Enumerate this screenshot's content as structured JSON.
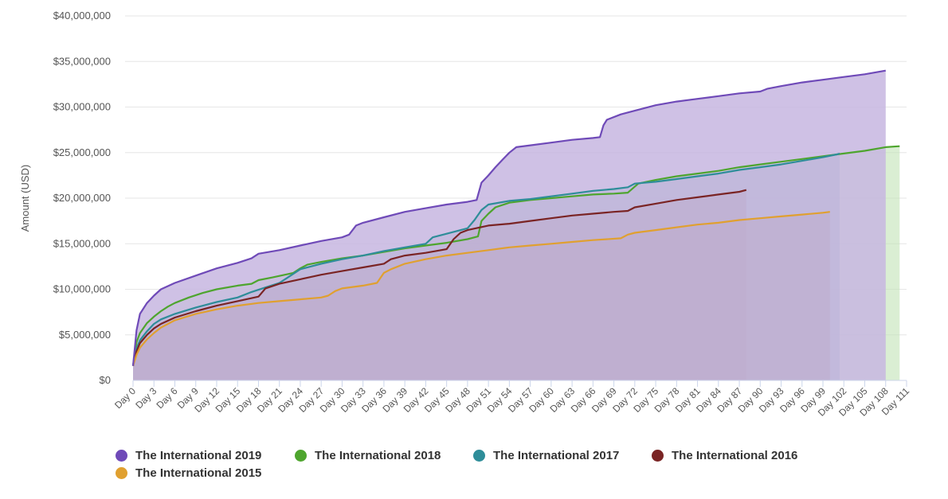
{
  "chart_data": {
    "type": "area",
    "title": "",
    "ylabel": "Amount (USD)",
    "xlabel": "",
    "ylim": [
      0,
      40000000
    ],
    "yticks": [
      "$0",
      "$5,000,000",
      "$10,000,000",
      "$15,000,000",
      "$20,000,000",
      "$25,000,000",
      "$30,000,000",
      "$35,000,000",
      "$40,000,000"
    ],
    "ytick_values": [
      0,
      5000000,
      10000000,
      15000000,
      20000000,
      25000000,
      30000000,
      35000000,
      40000000
    ],
    "xlim": [
      0,
      111
    ],
    "xticks": [
      "Day 0",
      "Day 3",
      "Day 6",
      "Day 9",
      "Day 12",
      "Day 15",
      "Day 18",
      "Day 21",
      "Day 24",
      "Day 27",
      "Day 30",
      "Day 33",
      "Day 36",
      "Day 39",
      "Day 42",
      "Day 45",
      "Day 48",
      "Day 51",
      "Day 54",
      "Day 57",
      "Day 60",
      "Day 63",
      "Day 66",
      "Day 69",
      "Day 72",
      "Day 75",
      "Day 78",
      "Day 81",
      "Day 84",
      "Day 87",
      "Day 90",
      "Day 93",
      "Day 96",
      "Day 99",
      "Day 102",
      "Day 105",
      "Day 108",
      "Day 111"
    ],
    "xtick_values": [
      0,
      3,
      6,
      9,
      12,
      15,
      18,
      21,
      24,
      27,
      30,
      33,
      36,
      39,
      42,
      45,
      48,
      51,
      54,
      57,
      60,
      63,
      66,
      69,
      72,
      75,
      78,
      81,
      84,
      87,
      90,
      93,
      96,
      99,
      102,
      105,
      108,
      111
    ],
    "grid": true,
    "legend_position": "bottom",
    "series": [
      {
        "name": "The International 2018",
        "color": "#4ea52e",
        "fill": "#c2e2b6",
        "points": [
          [
            0,
            1600000
          ],
          [
            0.5,
            4200000
          ],
          [
            1,
            5200000
          ],
          [
            2,
            6300000
          ],
          [
            3,
            7000000
          ],
          [
            4,
            7600000
          ],
          [
            5,
            8100000
          ],
          [
            6,
            8500000
          ],
          [
            8,
            9100000
          ],
          [
            10,
            9600000
          ],
          [
            12,
            10000000
          ],
          [
            15,
            10400000
          ],
          [
            17,
            10600000
          ],
          [
            18,
            11000000
          ],
          [
            20,
            11300000
          ],
          [
            23,
            11800000
          ],
          [
            24,
            12300000
          ],
          [
            25,
            12700000
          ],
          [
            27,
            13000000
          ],
          [
            30,
            13400000
          ],
          [
            33,
            13700000
          ],
          [
            36,
            14100000
          ],
          [
            39,
            14500000
          ],
          [
            42,
            14800000
          ],
          [
            45,
            15100000
          ],
          [
            48,
            15500000
          ],
          [
            49.5,
            15800000
          ],
          [
            50,
            17500000
          ],
          [
            51,
            18300000
          ],
          [
            52,
            19000000
          ],
          [
            54,
            19500000
          ],
          [
            57,
            19800000
          ],
          [
            60,
            20000000
          ],
          [
            63,
            20200000
          ],
          [
            66,
            20400000
          ],
          [
            69,
            20500000
          ],
          [
            71,
            20600000
          ],
          [
            72.5,
            21600000
          ],
          [
            75,
            22000000
          ],
          [
            78,
            22400000
          ],
          [
            81,
            22700000
          ],
          [
            84,
            23000000
          ],
          [
            87,
            23400000
          ],
          [
            90,
            23700000
          ],
          [
            93,
            24000000
          ],
          [
            96,
            24300000
          ],
          [
            99,
            24600000
          ],
          [
            102,
            24900000
          ],
          [
            105,
            25200000
          ],
          [
            108,
            25600000
          ],
          [
            110,
            25700000
          ]
        ]
      },
      {
        "name": "The International 2017",
        "color": "#2e8d99",
        "fill": "#8aaeb5",
        "points": [
          [
            0,
            1600000
          ],
          [
            0.5,
            3500000
          ],
          [
            1,
            4400000
          ],
          [
            2,
            5400000
          ],
          [
            3,
            6200000
          ],
          [
            4,
            6700000
          ],
          [
            6,
            7300000
          ],
          [
            9,
            8000000
          ],
          [
            12,
            8600000
          ],
          [
            15,
            9100000
          ],
          [
            17,
            9700000
          ],
          [
            19,
            10200000
          ],
          [
            21,
            10700000
          ],
          [
            22,
            11200000
          ],
          [
            24,
            12200000
          ],
          [
            27,
            12800000
          ],
          [
            30,
            13300000
          ],
          [
            33,
            13700000
          ],
          [
            36,
            14200000
          ],
          [
            39,
            14600000
          ],
          [
            42,
            15000000
          ],
          [
            43,
            15700000
          ],
          [
            45,
            16100000
          ],
          [
            48,
            16700000
          ],
          [
            49,
            17600000
          ],
          [
            50,
            18700000
          ],
          [
            51,
            19300000
          ],
          [
            54,
            19700000
          ],
          [
            57,
            19900000
          ],
          [
            60,
            20200000
          ],
          [
            63,
            20500000
          ],
          [
            66,
            20800000
          ],
          [
            69,
            21000000
          ],
          [
            71,
            21200000
          ],
          [
            72,
            21600000
          ],
          [
            75,
            21800000
          ],
          [
            78,
            22100000
          ],
          [
            81,
            22400000
          ],
          [
            84,
            22700000
          ],
          [
            87,
            23100000
          ],
          [
            90,
            23400000
          ],
          [
            93,
            23700000
          ],
          [
            96,
            24100000
          ],
          [
            99,
            24500000
          ],
          [
            101,
            24800000
          ],
          [
            101.4,
            24900000
          ]
        ]
      },
      {
        "name": "The International 2016",
        "color": "#7a2424",
        "fill": "#8b7669",
        "points": [
          [
            0,
            1600000
          ],
          [
            0.5,
            3200000
          ],
          [
            1,
            4100000
          ],
          [
            2,
            5000000
          ],
          [
            3,
            5700000
          ],
          [
            4,
            6200000
          ],
          [
            6,
            6900000
          ],
          [
            9,
            7600000
          ],
          [
            12,
            8200000
          ],
          [
            15,
            8700000
          ],
          [
            18,
            9200000
          ],
          [
            19,
            10100000
          ],
          [
            21,
            10600000
          ],
          [
            24,
            11100000
          ],
          [
            27,
            11600000
          ],
          [
            30,
            12000000
          ],
          [
            33,
            12400000
          ],
          [
            36,
            12800000
          ],
          [
            37,
            13300000
          ],
          [
            39,
            13700000
          ],
          [
            42,
            14000000
          ],
          [
            45,
            14400000
          ],
          [
            46,
            15500000
          ],
          [
            47,
            16200000
          ],
          [
            48,
            16500000
          ],
          [
            51,
            17000000
          ],
          [
            54,
            17200000
          ],
          [
            57,
            17500000
          ],
          [
            60,
            17800000
          ],
          [
            63,
            18100000
          ],
          [
            66,
            18300000
          ],
          [
            69,
            18500000
          ],
          [
            71,
            18600000
          ],
          [
            72,
            19000000
          ],
          [
            75,
            19400000
          ],
          [
            78,
            19800000
          ],
          [
            81,
            20100000
          ],
          [
            84,
            20400000
          ],
          [
            87,
            20700000
          ],
          [
            88,
            20900000
          ]
        ]
      },
      {
        "name": "The International 2015",
        "color": "#e0a030",
        "fill": "#8f7a60",
        "points": [
          [
            0,
            1600000
          ],
          [
            0.5,
            2800000
          ],
          [
            1,
            3600000
          ],
          [
            2,
            4500000
          ],
          [
            3,
            5200000
          ],
          [
            4,
            5800000
          ],
          [
            6,
            6600000
          ],
          [
            9,
            7300000
          ],
          [
            12,
            7800000
          ],
          [
            15,
            8200000
          ],
          [
            18,
            8500000
          ],
          [
            21,
            8700000
          ],
          [
            24,
            8900000
          ],
          [
            27,
            9100000
          ],
          [
            28,
            9300000
          ],
          [
            29,
            9800000
          ],
          [
            30,
            10100000
          ],
          [
            33,
            10400000
          ],
          [
            35,
            10700000
          ],
          [
            36,
            11800000
          ],
          [
            37,
            12200000
          ],
          [
            39,
            12800000
          ],
          [
            42,
            13300000
          ],
          [
            45,
            13700000
          ],
          [
            48,
            14000000
          ],
          [
            51,
            14300000
          ],
          [
            54,
            14600000
          ],
          [
            57,
            14800000
          ],
          [
            60,
            15000000
          ],
          [
            63,
            15200000
          ],
          [
            66,
            15400000
          ],
          [
            70,
            15600000
          ],
          [
            71,
            16000000
          ],
          [
            72,
            16200000
          ],
          [
            75,
            16500000
          ],
          [
            78,
            16800000
          ],
          [
            81,
            17100000
          ],
          [
            84,
            17300000
          ],
          [
            87,
            17600000
          ],
          [
            90,
            17800000
          ],
          [
            93,
            18000000
          ],
          [
            96,
            18200000
          ],
          [
            99,
            18400000
          ],
          [
            100,
            18500000
          ]
        ]
      },
      {
        "name": "The International 2019",
        "color": "#6f4ab8",
        "fill": "#c7b6e0",
        "points": [
          [
            0,
            1600000
          ],
          [
            0.5,
            5500000
          ],
          [
            1,
            7300000
          ],
          [
            2,
            8500000
          ],
          [
            3,
            9300000
          ],
          [
            4,
            10000000
          ],
          [
            6,
            10700000
          ],
          [
            9,
            11500000
          ],
          [
            12,
            12300000
          ],
          [
            15,
            12900000
          ],
          [
            17,
            13400000
          ],
          [
            18,
            13900000
          ],
          [
            21,
            14300000
          ],
          [
            24,
            14800000
          ],
          [
            27,
            15300000
          ],
          [
            30,
            15700000
          ],
          [
            31,
            16000000
          ],
          [
            32,
            17000000
          ],
          [
            33,
            17300000
          ],
          [
            36,
            17900000
          ],
          [
            39,
            18500000
          ],
          [
            42,
            18900000
          ],
          [
            45,
            19300000
          ],
          [
            48,
            19600000
          ],
          [
            49.3,
            19800000
          ],
          [
            50,
            21700000
          ],
          [
            51,
            22500000
          ],
          [
            52,
            23400000
          ],
          [
            53,
            24200000
          ],
          [
            54,
            25000000
          ],
          [
            55,
            25600000
          ],
          [
            57,
            25800000
          ],
          [
            60,
            26100000
          ],
          [
            63,
            26400000
          ],
          [
            66,
            26600000
          ],
          [
            67,
            26700000
          ],
          [
            67.5,
            28000000
          ],
          [
            68,
            28600000
          ],
          [
            70,
            29200000
          ],
          [
            72,
            29600000
          ],
          [
            75,
            30200000
          ],
          [
            78,
            30600000
          ],
          [
            81,
            30900000
          ],
          [
            84,
            31200000
          ],
          [
            87,
            31500000
          ],
          [
            90,
            31700000
          ],
          [
            91,
            32000000
          ],
          [
            93,
            32300000
          ],
          [
            96,
            32700000
          ],
          [
            99,
            33000000
          ],
          [
            102,
            33300000
          ],
          [
            105,
            33600000
          ],
          [
            108,
            34000000
          ]
        ]
      }
    ],
    "legend": [
      {
        "name": "The International 2019",
        "color": "#6f4ab8"
      },
      {
        "name": "The International 2018",
        "color": "#4ea52e"
      },
      {
        "name": "The International 2017",
        "color": "#2e8d99"
      },
      {
        "name": "The International 2016",
        "color": "#7a2424"
      },
      {
        "name": "The International 2015",
        "color": "#e0a030"
      }
    ]
  }
}
